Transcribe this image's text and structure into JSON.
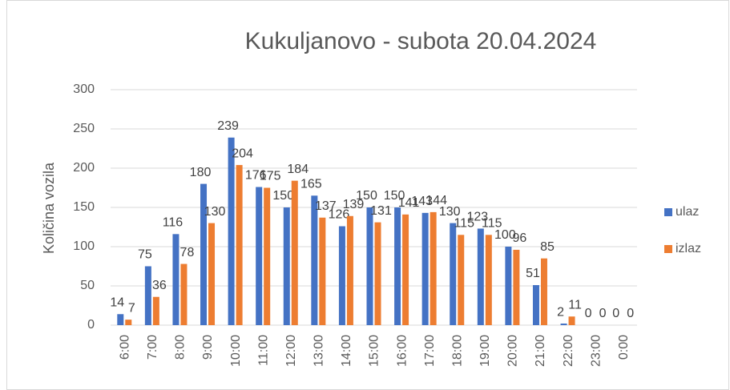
{
  "chart_data": {
    "type": "bar",
    "title": "Kukuljanovo - subota 20.04.2024",
    "y_label": "Količina vozila",
    "categories": [
      "6:00",
      "7:00",
      "8:00",
      "9:00",
      "10:00",
      "11:00",
      "12:00",
      "13:00",
      "14:00",
      "15:00",
      "16:00",
      "17:00",
      "18:00",
      "19:00",
      "20:00",
      "21:00",
      "22:00",
      "23:00",
      "0:00"
    ],
    "series": [
      {
        "name": "ulaz",
        "color": "#4472c4",
        "values": [
          14,
          75,
          116,
          180,
          239,
          176,
          150,
          165,
          126,
          150,
          150,
          143,
          130,
          123,
          100,
          51,
          2,
          0,
          0
        ]
      },
      {
        "name": "izlaz",
        "color": "#ed7d31",
        "values": [
          7,
          36,
          78,
          130,
          204,
          175,
          184,
          137,
          139,
          131,
          141,
          144,
          115,
          115,
          96,
          85,
          11,
          0,
          0
        ]
      }
    ],
    "ylim": [
      0,
      300
    ],
    "yticks": [
      0,
      50,
      100,
      150,
      200,
      250,
      300
    ],
    "grid": true,
    "legend": "right",
    "data_labels": true
  }
}
